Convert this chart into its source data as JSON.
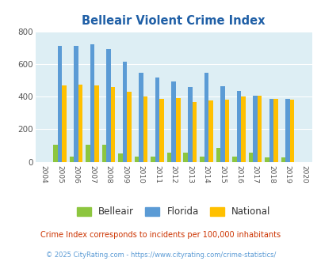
{
  "title": "Belleair Violent Crime Index",
  "years": [
    2004,
    2005,
    2006,
    2007,
    2008,
    2009,
    2010,
    2011,
    2012,
    2013,
    2014,
    2015,
    2016,
    2017,
    2018,
    2019,
    2020
  ],
  "belleair": [
    0,
    103,
    30,
    103,
    103,
    50,
    30,
    30,
    57,
    57,
    30,
    83,
    30,
    57,
    27,
    27,
    0
  ],
  "florida": [
    0,
    710,
    712,
    722,
    693,
    612,
    547,
    518,
    495,
    461,
    547,
    464,
    433,
    406,
    388,
    386,
    0
  ],
  "national": [
    0,
    469,
    474,
    469,
    457,
    430,
    402,
    388,
    390,
    368,
    376,
    383,
    400,
    403,
    387,
    380,
    0
  ],
  "belleair_color": "#8dc63f",
  "florida_color": "#5b9bd5",
  "national_color": "#ffc000",
  "fig_bg_color": "#ffffff",
  "plot_bg_color": "#ddeef4",
  "ylim": [
    0,
    800
  ],
  "yticks": [
    0,
    200,
    400,
    600,
    800
  ],
  "subtitle": "Crime Index corresponds to incidents per 100,000 inhabitants",
  "footer": "© 2025 CityRating.com - https://www.cityrating.com/crime-statistics/",
  "title_color": "#1f5fa6",
  "subtitle_color": "#cc3300",
  "footer_color": "#5b9bd5",
  "bar_width": 0.27
}
